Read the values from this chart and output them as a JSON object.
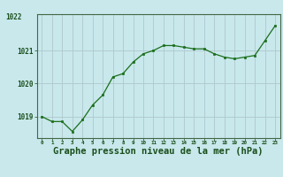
{
  "hours": [
    0,
    1,
    2,
    3,
    4,
    5,
    6,
    7,
    8,
    9,
    10,
    11,
    12,
    13,
    14,
    15,
    16,
    17,
    18,
    19,
    20,
    21,
    22,
    23
  ],
  "pressure": [
    1019.0,
    1018.85,
    1018.85,
    1018.55,
    1018.9,
    1019.35,
    1019.65,
    1020.2,
    1020.3,
    1020.65,
    1020.9,
    1021.0,
    1021.15,
    1021.15,
    1021.1,
    1021.05,
    1021.05,
    1020.9,
    1020.8,
    1020.75,
    1020.8,
    1020.85,
    1021.3,
    1021.75
  ],
  "line_color": "#1a6e1a",
  "marker": "s",
  "marker_size": 2.0,
  "bg_color": "#c8e8ec",
  "grid_color": "#b0c8cc",
  "xlabel": "Graphe pression niveau de la mer (hPa)",
  "xlabel_fontsize": 7.5,
  "xlabel_color": "#1a4e1a",
  "tick_label_color": "#1a4e1a",
  "ytick_vals": [
    1019,
    1020,
    1021
  ],
  "ylim": [
    1018.35,
    1022.1
  ],
  "xlim": [
    -0.5,
    23.5
  ]
}
